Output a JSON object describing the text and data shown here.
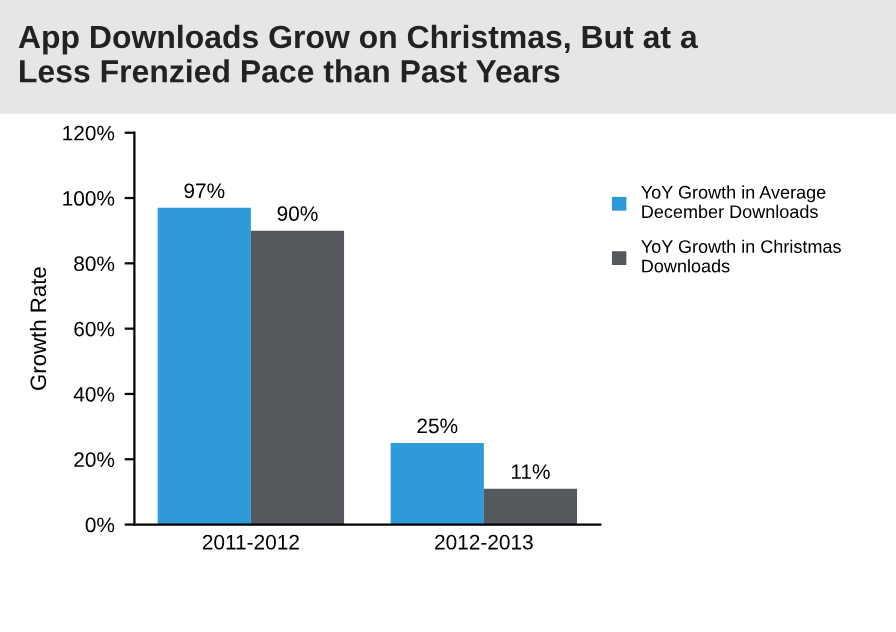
{
  "chart_data": {
    "type": "bar",
    "title": "App Downloads Grow on Christmas, But at a\nLess Frenzied Pace than Past Years",
    "ylabel": "Growth Rate",
    "categories": [
      "2011-2012",
      "2012-2013"
    ],
    "series": [
      {
        "name": "YoY Growth in Average\nDecember Downloads",
        "color": "#2e9ad8",
        "values": [
          97,
          25
        ],
        "value_labels": [
          "97%",
          "25%"
        ]
      },
      {
        "name": "YoY Growth in Christmas\nDownloads",
        "color": "#55595e",
        "values": [
          90,
          11
        ],
        "value_labels": [
          "90%",
          "11%"
        ]
      }
    ],
    "ylim": [
      0,
      120
    ],
    "yticks": [
      {
        "value": 0,
        "label": "0%"
      },
      {
        "value": 20,
        "label": "20%"
      },
      {
        "value": 40,
        "label": "40%"
      },
      {
        "value": 60,
        "label": "60%"
      },
      {
        "value": 80,
        "label": "80%"
      },
      {
        "value": 100,
        "label": "100%"
      },
      {
        "value": 120,
        "label": "120%"
      }
    ],
    "grid": false,
    "legend": "right"
  }
}
